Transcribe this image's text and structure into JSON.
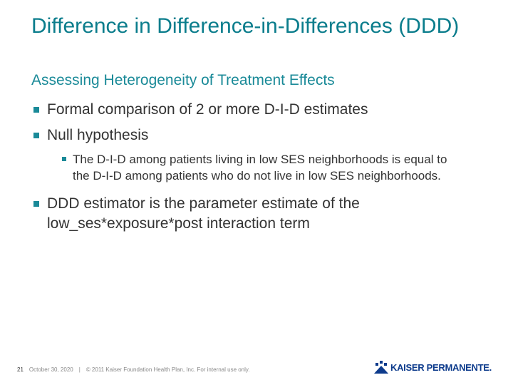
{
  "slide": {
    "title": "Difference in Difference-in-Differences (DDD)",
    "subtitle": "Assessing Heterogeneity of Treatment Effects",
    "bullets": [
      {
        "text": "Formal comparison of 2 or more D-I-D estimates"
      },
      {
        "text": "Null hypothesis",
        "subbullets": [
          "The D-I-D among patients living in low SES neighborhoods is equal to the D-I-D among patients who do not live in low SES neighborhoods."
        ]
      },
      {
        "text": "DDD estimator is the parameter estimate of the low_ses*exposure*post interaction term"
      }
    ],
    "footer": {
      "page": "21",
      "date": "October 30, 2020",
      "copyright": "© 2011 Kaiser Foundation Health Plan, Inc. For internal use only.",
      "logo": "KAISER PERMANENTE."
    }
  }
}
